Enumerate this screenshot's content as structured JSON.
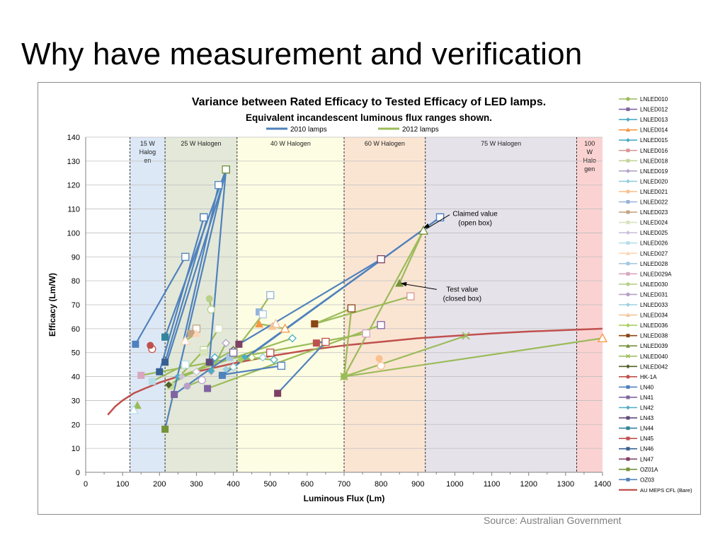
{
  "slide": {
    "title": "Why have measurement and verification",
    "source": "Source: Australian Government"
  },
  "colors": {
    "y2010": "#4f81bd",
    "y2012": "#9bbb59",
    "meps": "#c0504d",
    "band_15w": "#dde8f6",
    "band_25w": "#e3e8d8",
    "band_40w": "#fdfde3",
    "band_60w": "#fae5d3",
    "band_75w": "#e6e2ea",
    "band_100w": "#fbd2d2"
  },
  "chart_data": {
    "type": "line",
    "title": "Variance between Rated Efficacy to Tested Efficacy of LED lamps.",
    "subtitle": "Equivalent incandescent luminous flux ranges shown.",
    "xlabel": "Luminous Flux (Lm)",
    "ylabel": "Efficacy (Lm/W)",
    "xlim": [
      0,
      1400
    ],
    "ylim": [
      0,
      140
    ],
    "xticks": [
      0,
      100,
      200,
      300,
      400,
      500,
      600,
      700,
      800,
      900,
      1000,
      1100,
      1200,
      1300,
      1400
    ],
    "yticks": [
      0,
      10,
      20,
      30,
      40,
      50,
      60,
      70,
      80,
      90,
      100,
      110,
      120,
      130,
      140
    ],
    "grid": "horizontal",
    "legend_position": "right",
    "year_legend": [
      {
        "label": "2010 lamps",
        "color": "#4f81bd"
      },
      {
        "label": "2012 lamps",
        "color": "#9bbb59"
      }
    ],
    "bands": [
      {
        "from": 120,
        "to": 215,
        "label": [
          "15 W",
          "Halog",
          "en"
        ],
        "color": "#dde8f6"
      },
      {
        "from": 215,
        "to": 410,
        "label": [
          "25 W Halogen"
        ],
        "color": "#e3e8d8"
      },
      {
        "from": 410,
        "to": 700,
        "label": [
          "40 W Halogen"
        ],
        "color": "#fdfde3"
      },
      {
        "from": 700,
        "to": 920,
        "label": [
          "60 W Halogen"
        ],
        "color": "#fae5d3"
      },
      {
        "from": 920,
        "to": 1330,
        "label": [
          "75 W Halogen"
        ],
        "color": "#e6e2ea"
      },
      {
        "from": 1330,
        "to": 1400,
        "label": [
          "100",
          "W",
          "Halo",
          "gen"
        ],
        "color": "#fbd2d2"
      }
    ],
    "annotations": [
      {
        "lines": [
          "Claimed value",
          "(open box)"
        ],
        "text_at": [
          1055,
          107
        ],
        "arrow_to": [
          915,
          102
        ]
      },
      {
        "lines": [
          "Test value",
          "(closed box)"
        ],
        "text_at": [
          1020,
          75.5
        ],
        "arrow_to": [
          853,
          79
        ]
      }
    ],
    "series": [
      {
        "name": "LNLED010",
        "color": "#9bbb59",
        "marker": "circle",
        "year": "2012",
        "claimed": [
          720,
          68.5
        ],
        "tested": [
          700,
          40
        ]
      },
      {
        "name": "LNLED012",
        "color": "#8064a2",
        "marker": "square",
        "year": "2012",
        "claimed": [
          800,
          61.5
        ],
        "tested": [
          330,
          35
        ]
      },
      {
        "name": "LNLED013",
        "color": "#4bacc6",
        "marker": "diamond",
        "year": "2012",
        "claimed": [
          560,
          56
        ],
        "tested": [
          250,
          40
        ]
      },
      {
        "name": "LNLED014",
        "color": "#f79646",
        "marker": "triangle",
        "year": "2012",
        "claimed": [
          540,
          60
        ],
        "tested": [
          470,
          62
        ]
      },
      {
        "name": "LNLED015",
        "color": "#4bacc6",
        "marker": "diamond",
        "year": "2012",
        "claimed": [
          510,
          47
        ],
        "tested": [
          430,
          48
        ]
      },
      {
        "name": "LNLED016",
        "color": "#d99694",
        "marker": "square",
        "year": "2012",
        "claimed": [
          880,
          73.5
        ],
        "tested": [
          620,
          62
        ]
      },
      {
        "name": "LNLED018",
        "color": "#c3d69b",
        "marker": "square",
        "year": "2012",
        "claimed": [
          320,
          51
        ],
        "tested": [
          230,
          36
        ]
      },
      {
        "name": "LNLED019",
        "color": "#b3a2c7",
        "marker": "diamond",
        "year": "2012",
        "claimed": [
          380,
          54
        ],
        "tested": [
          340,
          42
        ]
      },
      {
        "name": "LNLED020",
        "color": "#93cddd",
        "marker": "diamond",
        "year": "2012",
        "claimed": [
          480,
          48
        ],
        "tested": [
          420,
          47
        ]
      },
      {
        "name": "LNLED021",
        "color": "#fac090",
        "marker": "circle",
        "year": "2012",
        "claimed": [
          800,
          44.5
        ],
        "tested": [
          795,
          47.5
        ]
      },
      {
        "name": "LNLED022",
        "color": "#95b3d7",
        "marker": "square",
        "year": "2012",
        "claimed": [
          500,
          74
        ],
        "tested": [
          470,
          67
        ]
      },
      {
        "name": "LNLED023",
        "color": "#c4a484",
        "marker": "square",
        "year": "2012",
        "claimed": [
          300,
          60
        ],
        "tested": [
          285,
          58
        ]
      },
      {
        "name": "LNLED024",
        "color": "#d7e4bd",
        "marker": "square",
        "year": "2012",
        "claimed": [
          360,
          60
        ],
        "tested": [
          320,
          50
        ]
      },
      {
        "name": "LNLED025",
        "color": "#ccc1da",
        "marker": "diamond",
        "year": "2012",
        "claimed": [
          300,
          42
        ],
        "tested": [
          260,
          40
        ]
      },
      {
        "name": "LNLED026",
        "color": "#b7dee8",
        "marker": "square",
        "year": "2012",
        "claimed": [
          270,
          45
        ],
        "tested": [
          180,
          38
        ]
      },
      {
        "name": "LNLED027",
        "color": "#fcd5b5",
        "marker": "triangle",
        "year": "2012",
        "claimed": [
          270,
          55
        ],
        "tested": [
          300,
          58
        ]
      },
      {
        "name": "LNLED028",
        "color": "#a6c9e2",
        "marker": "square",
        "year": "2012",
        "claimed": [
          480,
          66
        ],
        "tested": [
          390,
          48
        ]
      },
      {
        "name": "LNLED029A",
        "color": "#d8a6c0",
        "marker": "square",
        "year": "2012",
        "claimed": [
          760,
          58
        ],
        "tested": [
          150,
          40.5
        ]
      },
      {
        "name": "LNLED030",
        "color": "#b8d08a",
        "marker": "circle",
        "year": "2012",
        "claimed": [
          340,
          68
        ],
        "tested": [
          335,
          72.5
        ]
      },
      {
        "name": "LNLED031",
        "color": "#b8a0c8",
        "marker": "circle",
        "year": "2012",
        "claimed": [
          315,
          38.5
        ],
        "tested": [
          275,
          36
        ]
      },
      {
        "name": "LNLED033",
        "color": "#9dd0e0",
        "marker": "diamond",
        "year": "2012",
        "claimed": [
          400,
          44
        ],
        "tested": [
          380,
          43
        ]
      },
      {
        "name": "LNLED034",
        "color": "#f4c49a",
        "marker": "triangle",
        "year": "2012",
        "claimed": [
          515,
          62
        ],
        "tested": [
          505,
          61
        ]
      },
      {
        "name": "LNLED036",
        "color": "#a8d060",
        "marker": "diamond",
        "year": "2012",
        "claimed": [
          450,
          48
        ],
        "tested": [
          420,
          47
        ]
      },
      {
        "name": "LNLED038",
        "color": "#8b4513",
        "marker": "square",
        "year": "2012",
        "claimed": [
          720,
          68.5
        ],
        "tested": [
          620,
          62
        ]
      },
      {
        "name": "LNLED039",
        "color": "#76923c",
        "marker": "triangle",
        "year": "2012",
        "claimed": [
          915,
          101
        ],
        "tested": [
          850,
          79
        ]
      },
      {
        "name": "LNLED040",
        "color": "#9bbb59",
        "marker": "x",
        "year": "2012",
        "claimed": [
          1030,
          57
        ],
        "tested": [
          700,
          40
        ]
      },
      {
        "name": "LNLED042",
        "color": "#4f6228",
        "marker": "diamond",
        "year": "2012",
        "claimed": [
          400,
          51
        ],
        "tested": [
          225,
          36.5
        ]
      },
      {
        "name": "HK-1A",
        "color": "#c0504d",
        "marker": "circle",
        "year": "2010",
        "claimed": [
          180,
          51.5
        ],
        "tested": [
          175,
          53
        ]
      },
      {
        "name": "LN40",
        "color": "#4f81bd",
        "marker": "square",
        "year": "2010",
        "claimed": [
          270,
          90
        ],
        "tested": [
          135,
          53.5
        ]
      },
      {
        "name": "LN41",
        "color": "#8064a2",
        "marker": "square",
        "year": "2010",
        "claimed": [
          400,
          50
        ],
        "tested": [
          240,
          32.5
        ]
      },
      {
        "name": "LN42",
        "color": "#4bacc6",
        "marker": "diamond",
        "year": "2010",
        "claimed": [
          350,
          48
        ],
        "tested": [
          340,
          42.5
        ]
      },
      {
        "name": "LN43",
        "color": "#604a7b",
        "marker": "square",
        "year": "2010",
        "claimed": [
          380,
          126.5
        ],
        "tested": [
          335,
          46
        ]
      },
      {
        "name": "LN44",
        "color": "#31859c",
        "marker": "square",
        "year": "2010",
        "claimed": [
          380,
          126.5
        ],
        "tested": [
          215,
          56.5
        ]
      },
      {
        "name": "LN45",
        "color": "#c0504d",
        "marker": "square",
        "year": "2010",
        "claimed": [
          650,
          54.5
        ],
        "tested": [
          625,
          54
        ]
      },
      {
        "name": "LN46",
        "color": "#376092",
        "marker": "square",
        "year": "2010",
        "claimed": [
          320,
          106.5
        ],
        "tested": [
          200,
          42
        ]
      },
      {
        "name": "LN47",
        "color": "#7f3f64",
        "marker": "square",
        "year": "2010",
        "claimed": [
          800,
          89
        ],
        "tested": [
          415,
          53.5
        ]
      },
      {
        "name": "OZ01A",
        "color": "#77933c",
        "marker": "square",
        "year": "2010",
        "claimed": [
          380,
          126.5
        ],
        "tested": [
          215,
          18
        ]
      },
      {
        "name": "OZ03",
        "color": "#4f81bd",
        "marker": "square",
        "year": "2010",
        "claimed": [
          960,
          106.5
        ],
        "tested": [
          370,
          40.5
        ]
      },
      {
        "name": "AU MEPS CFL (Bare)",
        "color": "#c0504d",
        "marker": "line",
        "year": "reference",
        "x": [
          60,
          80,
          100,
          130,
          160,
          200,
          250,
          300,
          400,
          500,
          600,
          700,
          800,
          900,
          1000,
          1100,
          1200,
          1300,
          1400
        ],
        "y": [
          24,
          27.5,
          30,
          33,
          35,
          37.5,
          40,
          42,
          45.5,
          48.5,
          51,
          53,
          54.5,
          56,
          57,
          58,
          58.8,
          59.4,
          60
        ]
      }
    ],
    "extra_segments": [
      {
        "year": "2010",
        "from": [
          370,
          120
        ],
        "to": [
          220,
          46
        ]
      },
      {
        "year": "2010",
        "from": [
          360,
          120
        ],
        "to": [
          265,
          55
        ]
      },
      {
        "year": "2010",
        "from": [
          330,
          106.5
        ],
        "to": [
          215,
          46
        ]
      },
      {
        "year": "2010",
        "from": [
          960,
          106.5
        ],
        "to": [
          425,
          47
        ]
      },
      {
        "year": "2010",
        "from": [
          650,
          54.5
        ],
        "to": [
          520,
          33
        ]
      },
      {
        "year": "2010",
        "from": [
          530,
          44.5
        ],
        "to": [
          360,
          40.5
        ]
      },
      {
        "year": "2012",
        "from": [
          1400,
          56
        ],
        "to": [
          700,
          40
        ]
      },
      {
        "year": "2012",
        "from": [
          915,
          101
        ],
        "to": [
          700,
          40
        ]
      }
    ],
    "extra_points": [
      {
        "x": 1400,
        "y": 56,
        "color": "#f79646",
        "marker": "triangle-open"
      },
      {
        "x": 140,
        "y": 28,
        "color": "#9bbb59",
        "marker": "triangle"
      },
      {
        "x": 130,
        "y": 26,
        "color": "#b7dee8",
        "marker": "triangle-open"
      },
      {
        "x": 215,
        "y": 46,
        "color": "#376092",
        "marker": "square"
      },
      {
        "x": 520,
        "y": 33,
        "color": "#7f3f64",
        "marker": "square"
      },
      {
        "x": 530,
        "y": 44.5,
        "color": "#4f81bd",
        "marker": "square-open"
      },
      {
        "x": 500,
        "y": 50,
        "color": "#c0504d",
        "marker": "square-open"
      },
      {
        "x": 960,
        "y": 106.5,
        "color": "#4f81bd",
        "marker": "square-open"
      },
      {
        "x": 360,
        "y": 120,
        "color": "#4f81bd",
        "marker": "square-open"
      },
      {
        "x": 320,
        "y": 106.5,
        "color": "#4f81bd",
        "marker": "square-open"
      },
      {
        "x": 215,
        "y": 56.5,
        "color": "#31859c",
        "marker": "square"
      }
    ]
  }
}
